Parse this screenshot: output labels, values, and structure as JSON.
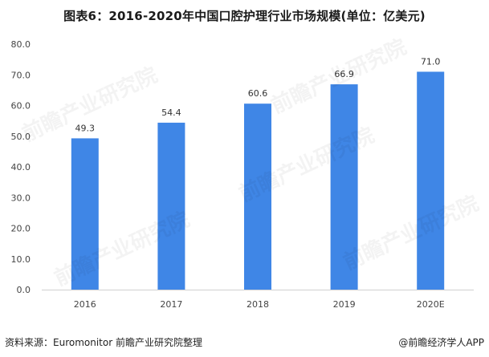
{
  "title": "图表6：2016-2020年中国口腔护理行业市场规模(单位：亿美元)",
  "chart_data": {
    "type": "bar",
    "title": "图表6：2016-2020年中国口腔护理行业市场规模(单位：亿美元)",
    "categories": [
      "2016",
      "2017",
      "2018",
      "2019",
      "2020E"
    ],
    "values": [
      49.3,
      54.4,
      60.6,
      66.9,
      71.0
    ],
    "value_labels": [
      "49.3",
      "54.4",
      "60.6",
      "66.9",
      "71.0"
    ],
    "xlabel": "",
    "ylabel": "",
    "ylim": [
      0,
      80
    ],
    "yticks": [
      0,
      10,
      20,
      30,
      40,
      50,
      60,
      70,
      80
    ],
    "ytick_labels": [
      "0.0",
      "10.0",
      "20.0",
      "30.0",
      "40.0",
      "50.0",
      "60.0",
      "70.0",
      "80.0"
    ],
    "grid": false,
    "legend": "none",
    "bar_color": "#3f86e6",
    "axis_color": "#d0d0d0"
  },
  "source": "资料来源：Euromonitor 前瞻产业研究院整理",
  "brand": "@前瞻经济学人APP",
  "watermark": "前瞻产业研究院"
}
